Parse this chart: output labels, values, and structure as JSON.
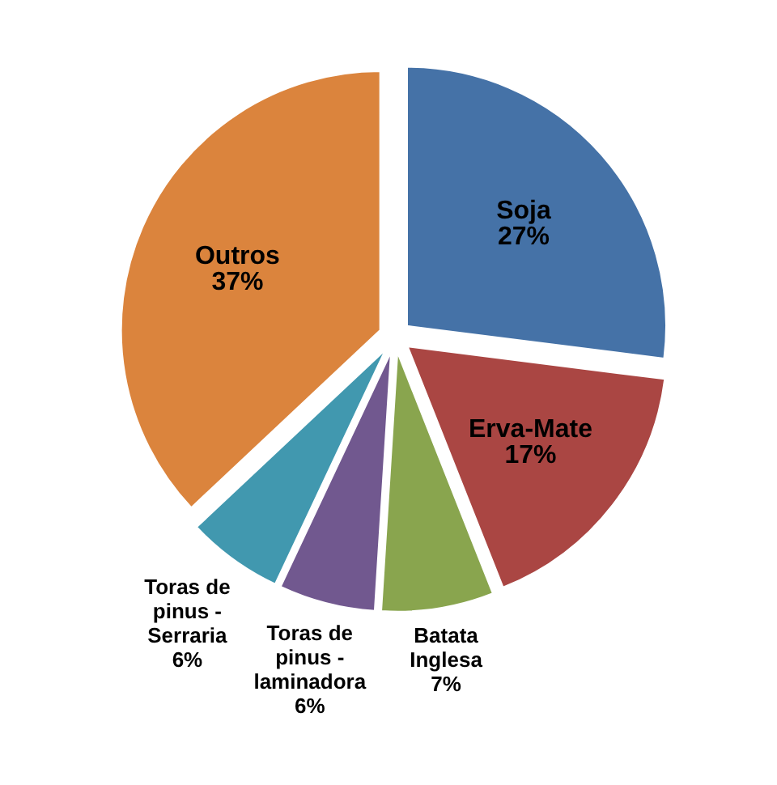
{
  "chart_data": {
    "type": "pie",
    "categories": [
      "Soja",
      "Erva-Mate",
      "Batata Inglesa",
      "Toras de pinus - laminadora",
      "Toras de pinus - Serraria",
      "Outros"
    ],
    "values": [
      27,
      17,
      7,
      6,
      6,
      37
    ],
    "value_labels": [
      "27%",
      "17%",
      "7%",
      "6%",
      "6%",
      "37%"
    ],
    "colors": [
      "#4572a7",
      "#aa4643",
      "#89a54e",
      "#71588f",
      "#4198af",
      "#db843d"
    ],
    "legend": false
  }
}
